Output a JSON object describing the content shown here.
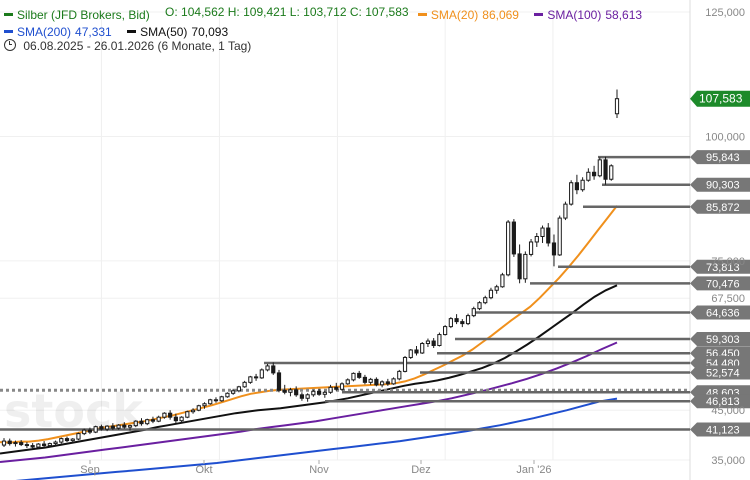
{
  "header": {
    "instrument": "Silber (JFD Brokers, Bid)",
    "ohlc": "O: 104,562  H: 109,421  L: 103,712  C: 107,583",
    "date_range": "06.08.2025 - 26.01.2026",
    "period": "(6 Monate, 1 Tag)"
  },
  "indicators": [
    {
      "label": "SMA(20)",
      "value": "86,069",
      "color": "#f0901c"
    },
    {
      "label": "SMA(100)",
      "value": "58,613",
      "color": "#6a1fa0"
    },
    {
      "label": "SMA(200)",
      "value": "47,331",
      "color": "#1f4fcf"
    },
    {
      "label": "SMA(50)",
      "value": "70,093",
      "color": "#111111"
    }
  ],
  "watermark": "stock",
  "colors": {
    "up": "#1b1b1b",
    "down": "#1b1b1b",
    "last_price_tag": "#1d8a2a",
    "level_line": "#666666",
    "level_tag": "#777777",
    "axis_text": "#888888",
    "grid": "#f0f0f0",
    "dotted_level": "#888888"
  },
  "chart_data": {
    "type": "candlestick",
    "title": "Silber (JFD Brokers, Bid)",
    "x_axis": {
      "labels": [
        "Sep",
        "Okt",
        "Nov",
        "Dez",
        "Jan '26"
      ],
      "range": [
        "06.08.2025",
        "26.01.2026"
      ]
    },
    "y_axis": {
      "range": [
        35,
        125
      ],
      "ticks": [
        "125,000",
        "100,000",
        "75,000",
        "67,500",
        "45,000",
        "35,000"
      ],
      "tick_values": [
        125,
        100,
        75,
        67.5,
        45,
        35
      ]
    },
    "last_price": {
      "label": "107,583",
      "value": 107.583
    },
    "levels": [
      {
        "label": "95,843",
        "value": 95.843
      },
      {
        "label": "90,303",
        "value": 90.303
      },
      {
        "label": "85,872",
        "value": 85.872
      },
      {
        "label": "73,813",
        "value": 73.813
      },
      {
        "label": "70,476",
        "value": 70.476
      },
      {
        "label": "64,636",
        "value": 64.636
      },
      {
        "label": "59,303",
        "value": 59.303
      },
      {
        "label": "56,450",
        "value": 56.45
      },
      {
        "label": "54,480",
        "value": 54.48
      },
      {
        "label": "52,574",
        "value": 52.574
      },
      {
        "label": "48,603",
        "value": 48.603
      },
      {
        "label": "46,813",
        "value": 46.813
      },
      {
        "label": "41,123",
        "value": 41.123
      }
    ],
    "dotted_level": 49.0,
    "candles": [
      [
        38.0,
        39.4,
        37.6,
        38.8
      ],
      [
        38.8,
        39.3,
        37.9,
        38.3
      ],
      [
        38.3,
        38.9,
        37.7,
        38.5
      ],
      [
        38.5,
        39.0,
        37.8,
        38.1
      ],
      [
        38.1,
        38.6,
        37.4,
        37.9
      ],
      [
        37.9,
        38.4,
        37.2,
        37.6
      ],
      [
        37.6,
        38.4,
        37.3,
        38.2
      ],
      [
        38.2,
        38.8,
        37.6,
        37.9
      ],
      [
        37.9,
        38.5,
        37.5,
        38.3
      ],
      [
        38.3,
        38.9,
        37.9,
        38.6
      ],
      [
        38.6,
        39.5,
        38.3,
        39.3
      ],
      [
        39.3,
        39.7,
        38.6,
        38.9
      ],
      [
        38.9,
        39.4,
        38.4,
        39.2
      ],
      [
        39.2,
        40.5,
        39.0,
        40.3
      ],
      [
        40.3,
        41.3,
        40.0,
        41.0
      ],
      [
        41.0,
        41.5,
        40.2,
        40.6
      ],
      [
        40.6,
        41.9,
        40.4,
        41.7
      ],
      [
        41.7,
        42.1,
        40.9,
        41.2
      ],
      [
        41.2,
        42.0,
        40.8,
        41.8
      ],
      [
        41.8,
        42.4,
        41.0,
        41.4
      ],
      [
        41.4,
        42.2,
        41.1,
        42.0
      ],
      [
        42.0,
        42.6,
        41.3,
        41.6
      ],
      [
        41.6,
        42.1,
        40.9,
        41.9
      ],
      [
        41.9,
        43.0,
        41.6,
        42.8
      ],
      [
        42.8,
        43.4,
        41.9,
        42.3
      ],
      [
        42.3,
        43.3,
        42.0,
        43.1
      ],
      [
        43.1,
        43.7,
        42.4,
        42.8
      ],
      [
        42.8,
        43.9,
        42.6,
        43.6
      ],
      [
        43.6,
        44.6,
        43.3,
        44.4
      ],
      [
        44.4,
        45.0,
        43.1,
        43.6
      ],
      [
        43.6,
        44.3,
        42.4,
        42.9
      ],
      [
        42.9,
        43.8,
        42.5,
        43.6
      ],
      [
        43.6,
        44.9,
        43.4,
        44.7
      ],
      [
        44.7,
        45.4,
        44.3,
        45.0
      ],
      [
        45.0,
        46.1,
        44.8,
        45.9
      ],
      [
        45.9,
        46.6,
        45.3,
        46.3
      ],
      [
        46.3,
        47.3,
        46.1,
        47.1
      ],
      [
        47.1,
        47.6,
        46.5,
        46.9
      ],
      [
        46.9,
        47.9,
        46.7,
        47.7
      ],
      [
        47.7,
        48.6,
        47.5,
        48.4
      ],
      [
        48.4,
        49.3,
        48.1,
        48.9
      ],
      [
        48.9,
        49.9,
        48.6,
        49.7
      ],
      [
        49.7,
        50.9,
        49.5,
        50.6
      ],
      [
        50.6,
        51.9,
        50.3,
        51.7
      ],
      [
        51.7,
        52.3,
        50.9,
        51.5
      ],
      [
        51.5,
        53.4,
        51.3,
        53.1
      ],
      [
        53.1,
        54.3,
        52.8,
        53.9
      ],
      [
        53.9,
        54.6,
        52.1,
        52.5
      ],
      [
        52.5,
        53.1,
        48.6,
        49.0
      ],
      [
        49.0,
        50.1,
        48.2,
        48.6
      ],
      [
        48.6,
        49.5,
        47.8,
        49.1
      ],
      [
        49.1,
        49.8,
        47.7,
        48.1
      ],
      [
        48.1,
        48.6,
        46.9,
        47.4
      ],
      [
        47.4,
        48.4,
        46.7,
        48.1
      ],
      [
        48.1,
        49.1,
        47.7,
        48.8
      ],
      [
        48.8,
        49.3,
        47.9,
        48.2
      ],
      [
        48.2,
        48.9,
        47.5,
        48.6
      ],
      [
        48.6,
        50.1,
        48.3,
        49.6
      ],
      [
        49.6,
        50.5,
        48.9,
        49.2
      ],
      [
        49.2,
        50.6,
        48.9,
        50.3
      ],
      [
        50.3,
        51.4,
        50.1,
        51.1
      ],
      [
        51.1,
        52.6,
        50.8,
        52.4
      ],
      [
        52.4,
        52.9,
        51.3,
        51.6
      ],
      [
        51.6,
        52.1,
        50.2,
        50.6
      ],
      [
        50.6,
        51.5,
        50.1,
        51.2
      ],
      [
        51.2,
        51.6,
        49.8,
        50.1
      ],
      [
        50.1,
        51.0,
        49.6,
        50.7
      ],
      [
        50.7,
        51.3,
        49.9,
        50.3
      ],
      [
        50.3,
        51.6,
        50.1,
        51.3
      ],
      [
        51.3,
        53.1,
        51.0,
        52.8
      ],
      [
        52.8,
        55.9,
        52.6,
        55.6
      ],
      [
        55.6,
        57.3,
        55.3,
        57.1
      ],
      [
        57.1,
        57.9,
        56.0,
        56.5
      ],
      [
        56.5,
        58.7,
        56.3,
        58.4
      ],
      [
        58.4,
        59.4,
        57.7,
        58.9
      ],
      [
        58.9,
        59.5,
        57.5,
        58.0
      ],
      [
        58.0,
        60.6,
        57.8,
        60.2
      ],
      [
        60.2,
        62.1,
        60.0,
        61.8
      ],
      [
        61.8,
        63.7,
        61.5,
        63.4
      ],
      [
        63.4,
        64.3,
        62.3,
        62.8
      ],
      [
        62.8,
        63.3,
        61.7,
        62.4
      ],
      [
        62.4,
        64.4,
        62.1,
        64.0
      ],
      [
        64.0,
        65.8,
        63.7,
        65.4
      ],
      [
        65.4,
        66.9,
        65.1,
        66.6
      ],
      [
        66.6,
        68.0,
        66.3,
        67.6
      ],
      [
        67.6,
        69.6,
        67.3,
        69.1
      ],
      [
        69.1,
        70.2,
        68.4,
        69.8
      ],
      [
        69.8,
        72.6,
        69.6,
        72.2
      ],
      [
        72.2,
        83.2,
        71.9,
        82.8
      ],
      [
        82.8,
        83.4,
        75.8,
        76.4
      ],
      [
        76.4,
        78.3,
        70.5,
        71.4
      ],
      [
        71.4,
        76.9,
        70.6,
        76.3
      ],
      [
        76.3,
        79.4,
        75.9,
        78.8
      ],
      [
        78.8,
        80.6,
        77.8,
        79.9
      ],
      [
        79.9,
        82.1,
        78.6,
        81.6
      ],
      [
        81.6,
        82.6,
        77.9,
        78.6
      ],
      [
        78.6,
        80.3,
        73.9,
        76.2
      ],
      [
        76.2,
        84.1,
        76.0,
        83.6
      ],
      [
        83.6,
        86.9,
        83.2,
        86.4
      ],
      [
        86.4,
        91.2,
        86.1,
        90.7
      ],
      [
        90.7,
        92.3,
        88.4,
        89.3
      ],
      [
        89.3,
        91.8,
        88.9,
        91.2
      ],
      [
        91.2,
        93.6,
        90.9,
        92.8
      ],
      [
        92.8,
        94.1,
        91.3,
        92.1
      ],
      [
        92.1,
        95.8,
        91.8,
        95.3
      ],
      [
        95.3,
        95.9,
        90.3,
        91.4
      ],
      [
        91.4,
        94.4,
        91.1,
        94.1
      ],
      [
        104.562,
        109.421,
        103.712,
        107.583
      ]
    ],
    "sma20": [
      [
        38.6,
        38.5,
        38.7,
        38.7,
        38.9,
        39.2,
        39.6,
        40.0,
        40.4,
        40.8,
        41.2,
        41.6,
        41.9,
        42.2,
        42.5,
        42.8,
        43.2,
        43.6,
        44.0,
        44.5,
        45.0,
        45.5,
        46.0,
        46.6,
        47.2,
        47.8,
        48.3,
        48.6,
        48.9,
        49.1,
        49.2,
        49.3,
        49.4,
        49.5,
        49.6,
        49.7,
        49.8,
        49.9,
        50.0,
        50.1,
        50.2,
        50.4,
        50.8,
        51.4,
        52.2,
        53.1,
        54.0,
        55.0,
        56.0,
        57.2,
        58.6,
        60.0,
        61.5,
        63.0,
        64.4,
        65.8,
        67.6,
        69.6,
        71.6,
        73.8,
        76.1,
        78.6,
        81.1,
        83.6,
        86.069
      ]
    ],
    "sma50": [
      36.3,
      36.6,
      36.9,
      37.2,
      37.5,
      37.9,
      38.3,
      38.7,
      39.1,
      39.5,
      39.9,
      40.3,
      40.7,
      41.1,
      41.6,
      42.0,
      42.4,
      42.8,
      43.2,
      43.6,
      44.0,
      44.4,
      44.7,
      45.0,
      45.2,
      45.4,
      45.7,
      46.0,
      46.3,
      46.6,
      47.0,
      47.4,
      47.9,
      48.4,
      48.9,
      49.4,
      49.9,
      50.3,
      50.6,
      51.0,
      51.5,
      52.1,
      52.8,
      53.5,
      54.4,
      55.5,
      56.8,
      58.2,
      59.7,
      61.3,
      62.9,
      64.5,
      66.2,
      67.8,
      69.1,
      70.093
    ],
    "sma100": [
      34.6,
      34.9,
      35.2,
      35.5,
      35.9,
      36.3,
      36.7,
      37.1,
      37.5,
      37.9,
      38.3,
      38.7,
      39.1,
      39.5,
      39.9,
      40.3,
      40.7,
      41.2,
      41.6,
      42.0,
      42.4,
      42.8,
      43.3,
      43.8,
      44.3,
      44.8,
      45.3,
      45.8,
      46.3,
      46.8,
      47.4,
      48.1,
      48.8,
      49.6,
      50.4,
      51.3,
      52.3,
      53.4,
      54.6,
      55.9,
      57.3,
      58.613
    ],
    "sma200": [
      30.5,
      30.8,
      31.1,
      31.4,
      31.7,
      32.0,
      32.3,
      32.6,
      32.9,
      33.2,
      33.5,
      33.8,
      34.1,
      34.4,
      34.8,
      35.2,
      35.6,
      36.0,
      36.4,
      36.8,
      37.2,
      37.6,
      38.0,
      38.4,
      38.8,
      39.3,
      39.8,
      40.3,
      40.8,
      41.4,
      42.0,
      42.7,
      43.4,
      44.2,
      45.0,
      45.9,
      46.8,
      47.331
    ]
  }
}
